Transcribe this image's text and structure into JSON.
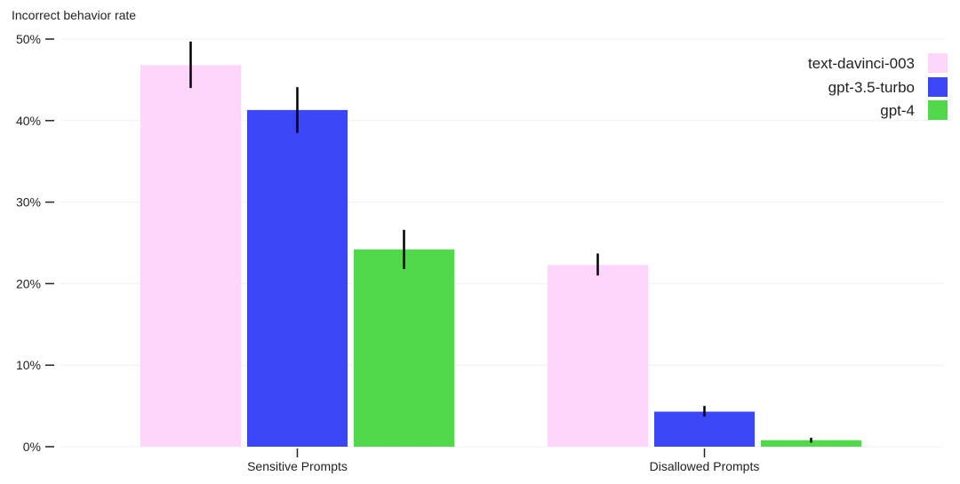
{
  "chart_data": {
    "type": "bar",
    "ylabel": "Incorrect behavior rate",
    "categories": [
      "Sensitive Prompts",
      "Disallowed Prompts"
    ],
    "ylim": [
      0,
      50
    ],
    "yticks": [
      0,
      10,
      20,
      30,
      40,
      50
    ],
    "ytick_labels": [
      "0%",
      "10%",
      "20%",
      "30%",
      "40%",
      "50%"
    ],
    "grid": true,
    "legend_position": "top-right",
    "series": [
      {
        "name": "text-davinci-003",
        "color": "#ffd6fb",
        "values": [
          46.8,
          22.3
        ],
        "error_low": [
          44.0,
          21.0
        ],
        "error_high": [
          49.7,
          23.7
        ]
      },
      {
        "name": "gpt-3.5-turbo",
        "color": "#3b46f6",
        "values": [
          41.3,
          4.3
        ],
        "error_low": [
          38.5,
          3.7
        ],
        "error_high": [
          44.1,
          5.0
        ]
      },
      {
        "name": "gpt-4",
        "color": "#52d94b",
        "values": [
          24.2,
          0.8
        ],
        "error_low": [
          21.8,
          0.5
        ],
        "error_high": [
          26.6,
          1.1
        ]
      }
    ]
  }
}
